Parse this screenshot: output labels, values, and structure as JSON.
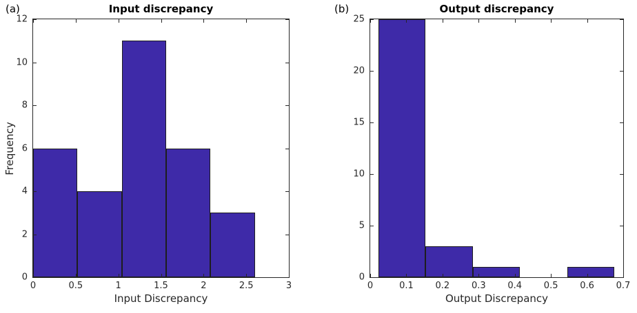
{
  "figure": {
    "background": "#ffffff",
    "bar_fill": "#3e2aa8",
    "bar_edge": "#1d1d1d",
    "axis_color": "#262626",
    "text_color": "#262626",
    "title_color": "#000000"
  },
  "chart_data": [
    {
      "type": "histogram",
      "panel_label": "(a)",
      "title": "Input discrepancy",
      "xlabel": "Input Discrepancy",
      "ylabel": "Frequency",
      "xlim": [
        0,
        3
      ],
      "ylim": [
        0,
        12
      ],
      "xticks": [
        0,
        0.5,
        1,
        1.5,
        2,
        2.5,
        3
      ],
      "xtick_labels": [
        "0",
        "0.5",
        "1",
        "1.5",
        "2",
        "2.5",
        "3"
      ],
      "yticks": [
        0,
        2,
        4,
        6,
        8,
        10,
        12
      ],
      "ytick_labels": [
        "0",
        "2",
        "4",
        "6",
        "8",
        "10",
        "12"
      ],
      "bin_edges": [
        0,
        0.52,
        1.04,
        1.56,
        2.08,
        2.6
      ],
      "counts": [
        6,
        4,
        11,
        6,
        3
      ],
      "grid": false,
      "legend": false
    },
    {
      "type": "histogram",
      "panel_label": "(b)",
      "title": "Output discrepancy",
      "xlabel": "Output Discrepancy",
      "ylabel": "",
      "xlim": [
        0,
        0.7
      ],
      "ylim": [
        0,
        25
      ],
      "xticks": [
        0,
        0.1,
        0.2,
        0.3,
        0.4,
        0.5,
        0.6,
        0.7
      ],
      "xtick_labels": [
        "0",
        "0.1",
        "0.2",
        "0.3",
        "0.4",
        "0.5",
        "0.6",
        "0.7"
      ],
      "yticks": [
        0,
        5,
        10,
        15,
        20,
        25
      ],
      "ytick_labels": [
        "0",
        "5",
        "10",
        "15",
        "20",
        "25"
      ],
      "bin_edges": [
        0.023,
        0.153,
        0.284,
        0.414,
        0.545,
        0.675
      ],
      "counts": [
        25,
        3,
        1,
        0,
        1
      ],
      "grid": false,
      "legend": false
    }
  ]
}
